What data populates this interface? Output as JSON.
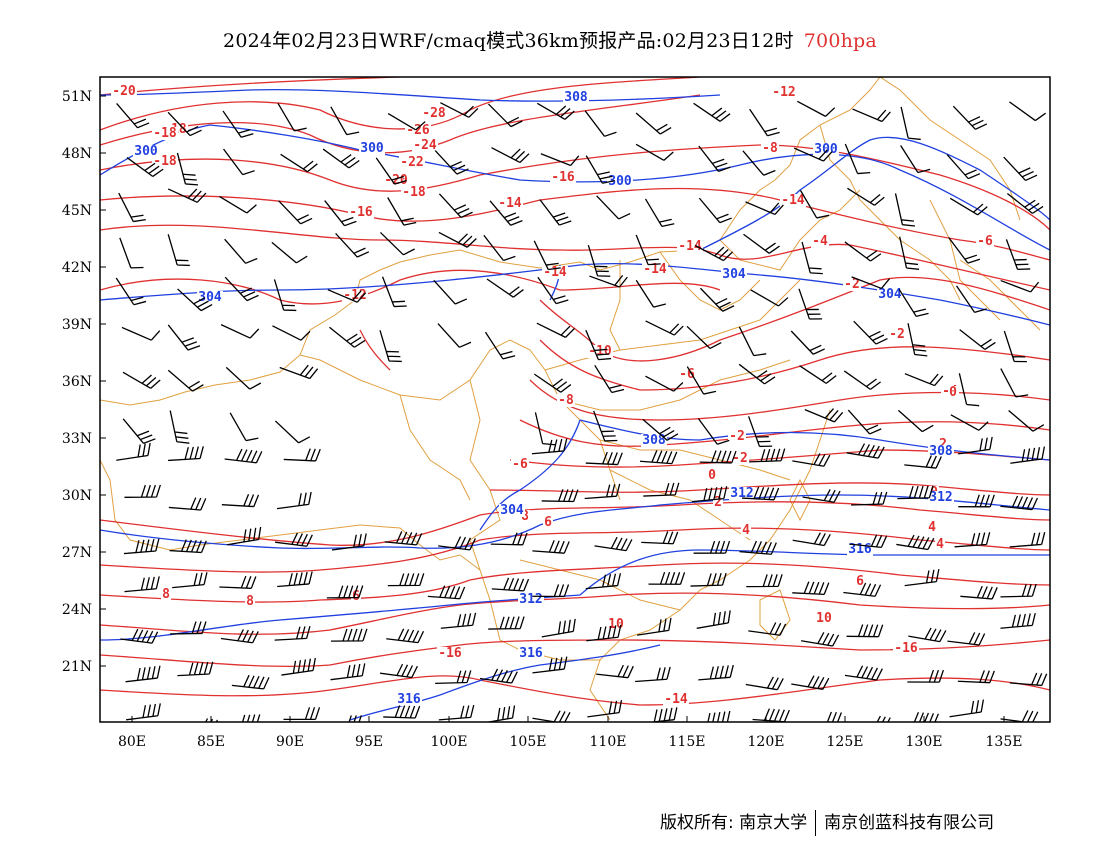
{
  "header": {
    "title": "2024年02月23日WRF/cmaq模式36km预报产品:02月23日12时",
    "level": "700hpa",
    "level_color": "#e03030"
  },
  "axes": {
    "lat_labels": [
      "51N",
      "48N",
      "45N",
      "42N",
      "39N",
      "36N",
      "33N",
      "30N",
      "27N",
      "24N",
      "21N"
    ],
    "lon_labels": [
      "80E",
      "85E",
      "90E",
      "95E",
      "100E",
      "105E",
      "110E",
      "115E",
      "120E",
      "125E",
      "130E",
      "135E"
    ]
  },
  "contours": {
    "temperature_color": "#e03030",
    "height_color": "#2040e0",
    "border_color": "#e0a040",
    "barb_color": "#000000",
    "temperature_labels": [
      "-20",
      "-18",
      "-18",
      "-28",
      "-26",
      "-24",
      "-22",
      "-20",
      "-18",
      "-16",
      "-16",
      "-14",
      "-14",
      "-14",
      "-14",
      "-14",
      "-12",
      "-10",
      "-8",
      "-6",
      "-6",
      "-4",
      "-2",
      "-2",
      "0",
      "0",
      "2",
      "4",
      "4",
      "6",
      "6",
      "8",
      "8",
      "10",
      "10",
      "-16",
      "-16",
      "-14",
      "-12",
      "-8",
      "-6",
      "-4",
      "-2",
      "-2",
      "0",
      "2",
      "4",
      "6",
      "8",
      "-18"
    ],
    "height_labels": [
      "300",
      "300",
      "300",
      "308",
      "300",
      "304",
      "304",
      "304",
      "308",
      "308",
      "312",
      "312",
      "312",
      "316",
      "316",
      "316",
      "304"
    ]
  },
  "footer": {
    "copyright": "版权所有: 南京大学",
    "company": "南京创蓝科技有限公司"
  }
}
